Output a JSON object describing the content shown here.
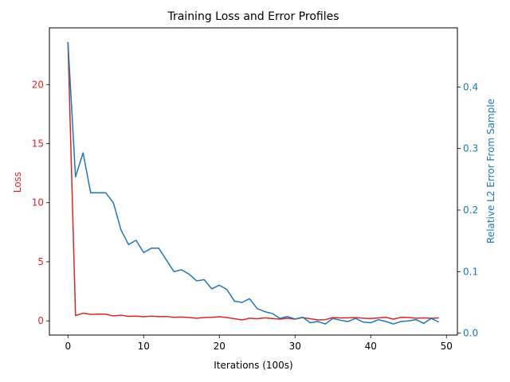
{
  "chart_data": {
    "type": "line",
    "title": "Training Loss and Error Profiles",
    "xlabel": "Iterations (100s)",
    "x": [
      0,
      1,
      2,
      3,
      4,
      5,
      6,
      7,
      8,
      9,
      10,
      11,
      12,
      13,
      14,
      15,
      16,
      17,
      18,
      19,
      20,
      21,
      22,
      23,
      24,
      25,
      26,
      27,
      28,
      29,
      30,
      31,
      32,
      33,
      34,
      35,
      36,
      37,
      38,
      39,
      40,
      41,
      42,
      43,
      44,
      45,
      46,
      47,
      48,
      49
    ],
    "xlim": [
      -2.45,
      51.45
    ],
    "xticks": [
      0,
      10,
      20,
      30,
      40,
      50
    ],
    "left_axis": {
      "label": "Loss",
      "color": "#d62728",
      "ylim": [
        -1.2,
        24.8
      ],
      "ticks": [
        0,
        5,
        10,
        15,
        20
      ]
    },
    "right_axis": {
      "label": "Relative L2 Error From Sample",
      "color": "#1f77b4",
      "ylim": [
        -0.003,
        0.496
      ],
      "ticks": [
        0.0,
        0.1,
        0.2,
        0.3,
        0.4
      ],
      "tick_labels": [
        "0.0",
        "0.1",
        "0.2",
        "0.3",
        "0.4"
      ]
    },
    "series": [
      {
        "axis": "left",
        "color": "#d62728",
        "values": [
          23.6,
          0.45,
          0.65,
          0.55,
          0.58,
          0.56,
          0.42,
          0.48,
          0.38,
          0.4,
          0.35,
          0.4,
          0.36,
          0.37,
          0.3,
          0.32,
          0.28,
          0.22,
          0.28,
          0.3,
          0.35,
          0.28,
          0.18,
          0.08,
          0.22,
          0.18,
          0.26,
          0.2,
          0.15,
          0.22,
          0.15,
          0.28,
          0.18,
          0.08,
          0.1,
          0.28,
          0.25,
          0.26,
          0.28,
          0.22,
          0.2,
          0.25,
          0.3,
          0.15,
          0.3,
          0.28,
          0.22,
          0.25,
          0.22,
          0.25
        ]
      },
      {
        "axis": "right",
        "color": "#1f77b4",
        "values": [
          0.473,
          0.254,
          0.293,
          0.228,
          0.228,
          0.228,
          0.212,
          0.168,
          0.144,
          0.151,
          0.131,
          0.138,
          0.138,
          0.119,
          0.1,
          0.103,
          0.096,
          0.085,
          0.087,
          0.072,
          0.078,
          0.071,
          0.052,
          0.05,
          0.056,
          0.04,
          0.035,
          0.032,
          0.024,
          0.027,
          0.023,
          0.026,
          0.017,
          0.019,
          0.015,
          0.024,
          0.021,
          0.019,
          0.024,
          0.018,
          0.017,
          0.022,
          0.019,
          0.015,
          0.019,
          0.02,
          0.022,
          0.016,
          0.024,
          0.018
        ]
      }
    ]
  }
}
